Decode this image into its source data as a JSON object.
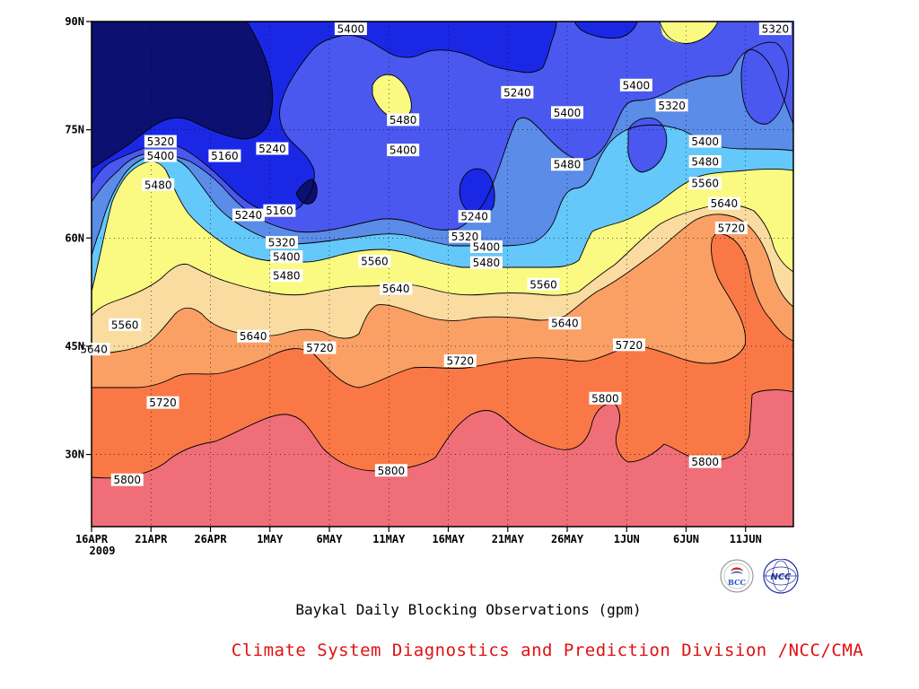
{
  "title": "Baykal Daily Blocking Observations (gpm)",
  "credit": "Climate System Diagnostics and Prediction Division /NCC/CMA",
  "logo_text": {
    "bcc": "BCC",
    "ncc": "NCC"
  },
  "chart_data": {
    "type": "contour",
    "title": "Baykal Daily Blocking Observations (gpm)",
    "xlabel": "",
    "ylabel": "",
    "x_ticks": [
      "16APR",
      "21APR",
      "26APR",
      "1MAY",
      "6MAY",
      "11MAY",
      "16MAY",
      "21MAY",
      "26MAY",
      "1JUN",
      "6JUN",
      "11JUN"
    ],
    "x_year_label": "2009",
    "y_ticks": [
      "90N",
      "75N",
      "60N",
      "45N",
      "30N"
    ],
    "x_range": [
      "16APR2009",
      "13JUN2009"
    ],
    "y_range": [
      20,
      90
    ],
    "levels": [
      5160,
      5240,
      5320,
      5400,
      5480,
      5560,
      5640,
      5720,
      5800
    ],
    "fill_colors": [
      "#0c1070",
      "#1a28e6",
      "#4a58f0",
      "#5a8ce8",
      "#64c8fa",
      "#fafa82",
      "#fadca0",
      "#faa064",
      "#fa7846",
      "#f06e78"
    ],
    "contour_labels": [
      {
        "value": "5400",
        "day": 21.8,
        "lat": 89
      },
      {
        "value": "5320",
        "day": 57.5,
        "lat": 89
      },
      {
        "value": "5240",
        "day": 35.8,
        "lat": 80.2
      },
      {
        "value": "5400",
        "day": 45.8,
        "lat": 81.2
      },
      {
        "value": "5320",
        "day": 48.8,
        "lat": 78.4
      },
      {
        "value": "5480",
        "day": 26.2,
        "lat": 76.4
      },
      {
        "value": "5400",
        "day": 40,
        "lat": 77.4
      },
      {
        "value": "5320",
        "day": 5.8,
        "lat": 73.4
      },
      {
        "value": "5160",
        "day": 11.2,
        "lat": 71.4
      },
      {
        "value": "5240",
        "day": 15.2,
        "lat": 72.4
      },
      {
        "value": "5400",
        "day": 26.2,
        "lat": 72.2
      },
      {
        "value": "5400",
        "day": 51.6,
        "lat": 73.4
      },
      {
        "value": "5400",
        "day": 5.8,
        "lat": 71.4
      },
      {
        "value": "5480",
        "day": 40.0,
        "lat": 70.2
      },
      {
        "value": "5480",
        "day": 51.6,
        "lat": 70.6
      },
      {
        "value": "5480",
        "day": 5.6,
        "lat": 67.4
      },
      {
        "value": "5560",
        "day": 51.6,
        "lat": 67.6
      },
      {
        "value": "5240",
        "day": 13.2,
        "lat": 63.2
      },
      {
        "value": "5160",
        "day": 15.8,
        "lat": 63.8
      },
      {
        "value": "5240",
        "day": 32.2,
        "lat": 63.0
      },
      {
        "value": "5640",
        "day": 53.2,
        "lat": 64.8
      },
      {
        "value": "5320",
        "day": 31.4,
        "lat": 60.2
      },
      {
        "value": "5720",
        "day": 53.8,
        "lat": 61.4
      },
      {
        "value": "5320",
        "day": 16.0,
        "lat": 59.4
      },
      {
        "value": "5400",
        "day": 33.2,
        "lat": 58.8
      },
      {
        "value": "5400",
        "day": 16.4,
        "lat": 57.4
      },
      {
        "value": "5560",
        "day": 23.8,
        "lat": 56.8
      },
      {
        "value": "5480",
        "day": 33.2,
        "lat": 56.6
      },
      {
        "value": "5480",
        "day": 16.4,
        "lat": 54.8
      },
      {
        "value": "5560",
        "day": 38.0,
        "lat": 53.6
      },
      {
        "value": "5640",
        "day": 25.6,
        "lat": 53.0
      },
      {
        "value": "5560",
        "day": 2.8,
        "lat": 48.0
      },
      {
        "value": "5640",
        "day": 39.8,
        "lat": 48.2
      },
      {
        "value": "5640",
        "day": 13.6,
        "lat": 46.4
      },
      {
        "value": "5640",
        "day": 0.2,
        "lat": 44.6
      },
      {
        "value": "5720",
        "day": 19.2,
        "lat": 44.8
      },
      {
        "value": "5720",
        "day": 45.2,
        "lat": 45.2
      },
      {
        "value": "5720",
        "day": 31.0,
        "lat": 43.0
      },
      {
        "value": "5800",
        "day": 43.2,
        "lat": 37.8
      },
      {
        "value": "5720",
        "day": 6.0,
        "lat": 37.2
      },
      {
        "value": "5800",
        "day": 25.2,
        "lat": 27.8
      },
      {
        "value": "5800",
        "day": 51.6,
        "lat": 29.0
      },
      {
        "value": "5800",
        "day": 3.0,
        "lat": 26.5
      }
    ]
  }
}
